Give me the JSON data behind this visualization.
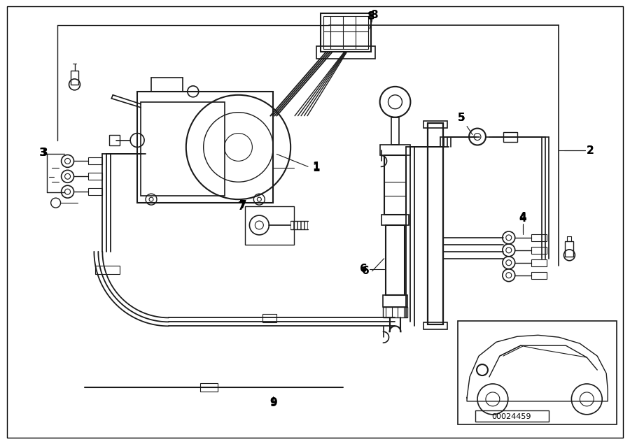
{
  "bg_color": "#ffffff",
  "line_color": "#1a1a1a",
  "fig_width": 9.0,
  "fig_height": 6.35,
  "part_id": "00024459"
}
